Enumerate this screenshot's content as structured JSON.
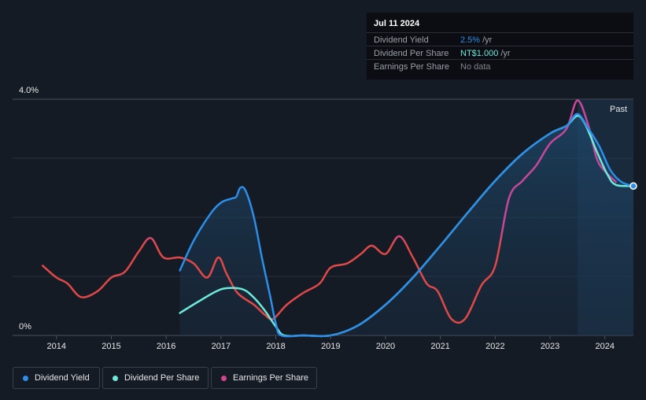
{
  "tooltip": {
    "date": "Jul 11 2024",
    "rows": [
      {
        "label": "Dividend Yield",
        "value": "2.5%",
        "unit": "/yr",
        "color": "#2c8ee8"
      },
      {
        "label": "Dividend Per Share",
        "value": "NT$1.000",
        "unit": "/yr",
        "color": "#6fe7da"
      },
      {
        "label": "Earnings Per Share",
        "value": "No data",
        "unit": "",
        "color": "#7e838c"
      }
    ]
  },
  "legend": [
    {
      "label": "Dividend Yield",
      "color": "#2c8ee8"
    },
    {
      "label": "Dividend Per Share",
      "color": "#6fe7da"
    },
    {
      "label": "Earnings Per Share",
      "color": "#d0458c"
    }
  ],
  "chart_data": {
    "type": "line",
    "y_max_label": "4.0%",
    "y_min_label": "0%",
    "past_label": "Past",
    "x_ticks": [
      "2014",
      "2015",
      "2016",
      "2017",
      "2018",
      "2019",
      "2020",
      "2021",
      "2022",
      "2023",
      "2024"
    ],
    "ylim": [
      0,
      4.0
    ],
    "xlim": [
      2013.2,
      2024.52
    ],
    "series": [
      {
        "name": "Dividend Yield",
        "color": "#2c8ee8",
        "points": [
          [
            2016.25,
            1.1
          ],
          [
            2016.5,
            1.6
          ],
          [
            2016.8,
            2.05
          ],
          [
            2017.0,
            2.25
          ],
          [
            2017.2,
            2.32
          ],
          [
            2017.28,
            2.35
          ],
          [
            2017.35,
            2.5
          ],
          [
            2017.45,
            2.45
          ],
          [
            2017.6,
            2.0
          ],
          [
            2017.75,
            1.3
          ],
          [
            2017.9,
            0.65
          ],
          [
            2018.0,
            0.2
          ],
          [
            2018.1,
            0.0
          ],
          [
            2018.5,
            0.0
          ],
          [
            2019.0,
            0.0
          ],
          [
            2019.5,
            0.17
          ],
          [
            2020.0,
            0.52
          ],
          [
            2020.5,
            0.98
          ],
          [
            2021.0,
            1.52
          ],
          [
            2021.5,
            2.08
          ],
          [
            2022.0,
            2.62
          ],
          [
            2022.5,
            3.08
          ],
          [
            2023.0,
            3.42
          ],
          [
            2023.3,
            3.55
          ],
          [
            2023.5,
            3.75
          ],
          [
            2023.7,
            3.5
          ],
          [
            2023.9,
            3.2
          ],
          [
            2024.1,
            2.8
          ],
          [
            2024.3,
            2.6
          ],
          [
            2024.52,
            2.53
          ]
        ]
      },
      {
        "name": "Dividend Per Share",
        "color": "#6fe7da",
        "points": [
          [
            2016.25,
            0.38
          ],
          [
            2016.6,
            0.58
          ],
          [
            2016.9,
            0.74
          ],
          [
            2017.1,
            0.8
          ],
          [
            2017.4,
            0.78
          ],
          [
            2017.6,
            0.64
          ],
          [
            2017.8,
            0.42
          ],
          [
            2018.0,
            0.15
          ],
          [
            2018.15,
            0.0
          ],
          [
            2018.5,
            0.0
          ],
          [
            2019.0,
            0.0
          ],
          [
            2019.5,
            0.17
          ],
          [
            2020.0,
            0.52
          ],
          [
            2020.5,
            0.98
          ],
          [
            2021.0,
            1.52
          ],
          [
            2021.5,
            2.08
          ],
          [
            2022.0,
            2.62
          ],
          [
            2022.5,
            3.08
          ],
          [
            2023.0,
            3.42
          ],
          [
            2023.3,
            3.55
          ],
          [
            2023.5,
            3.72
          ],
          [
            2023.65,
            3.56
          ],
          [
            2023.85,
            3.12
          ],
          [
            2024.05,
            2.72
          ],
          [
            2024.2,
            2.55
          ],
          [
            2024.52,
            2.53
          ]
        ]
      },
      {
        "name": "Earnings Per Share",
        "color": "#d0458c",
        "points": [
          [
            2013.75,
            1.18
          ],
          [
            2014.0,
            0.98
          ],
          [
            2014.2,
            0.88
          ],
          [
            2014.45,
            0.65
          ],
          [
            2014.75,
            0.75
          ],
          [
            2015.0,
            0.98
          ],
          [
            2015.25,
            1.08
          ],
          [
            2015.5,
            1.42
          ],
          [
            2015.72,
            1.65
          ],
          [
            2015.95,
            1.32
          ],
          [
            2016.25,
            1.32
          ],
          [
            2016.5,
            1.22
          ],
          [
            2016.75,
            0.98
          ],
          [
            2016.95,
            1.32
          ],
          [
            2017.1,
            1.05
          ],
          [
            2017.3,
            0.72
          ],
          [
            2017.6,
            0.52
          ],
          [
            2017.8,
            0.35
          ],
          [
            2017.95,
            0.28
          ],
          [
            2018.2,
            0.52
          ],
          [
            2018.5,
            0.72
          ],
          [
            2018.8,
            0.88
          ],
          [
            2019.0,
            1.15
          ],
          [
            2019.3,
            1.22
          ],
          [
            2019.55,
            1.38
          ],
          [
            2019.75,
            1.52
          ],
          [
            2020.0,
            1.38
          ],
          [
            2020.25,
            1.68
          ],
          [
            2020.5,
            1.32
          ],
          [
            2020.75,
            0.88
          ],
          [
            2020.95,
            0.75
          ],
          [
            2021.2,
            0.28
          ],
          [
            2021.45,
            0.28
          ],
          [
            2021.75,
            0.85
          ],
          [
            2022.0,
            1.18
          ],
          [
            2022.25,
            2.32
          ],
          [
            2022.5,
            2.62
          ],
          [
            2022.75,
            2.88
          ],
          [
            2023.0,
            3.25
          ],
          [
            2023.3,
            3.5
          ],
          [
            2023.5,
            3.98
          ],
          [
            2023.7,
            3.55
          ],
          [
            2023.85,
            3.0
          ],
          [
            2024.0,
            2.78
          ],
          [
            2024.2,
            2.6
          ]
        ]
      }
    ]
  }
}
